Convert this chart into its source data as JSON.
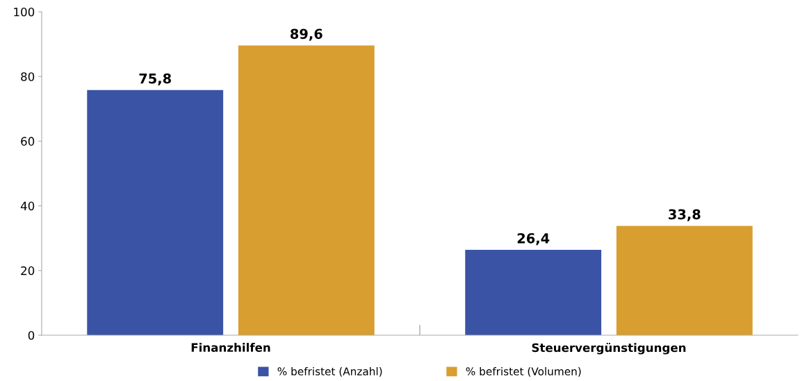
{
  "chart_data": {
    "type": "bar",
    "categories": [
      "Finanzhilfen",
      "Steuervergünstigungen"
    ],
    "series": [
      {
        "name": "% befristet (Anzahl)",
        "color": "#3a53a4",
        "values": [
          75.8,
          26.4
        ],
        "value_labels": [
          "75,8",
          "26,4"
        ]
      },
      {
        "name": "% befristet (Volumen)",
        "color": "#d99e30",
        "values": [
          89.6,
          33.8
        ],
        "value_labels": [
          "89,6",
          "33,8"
        ]
      }
    ],
    "ylim": [
      0,
      100
    ],
    "yticks": [
      0,
      20,
      40,
      60,
      80,
      100
    ],
    "grid": false,
    "legend": "bottom"
  }
}
